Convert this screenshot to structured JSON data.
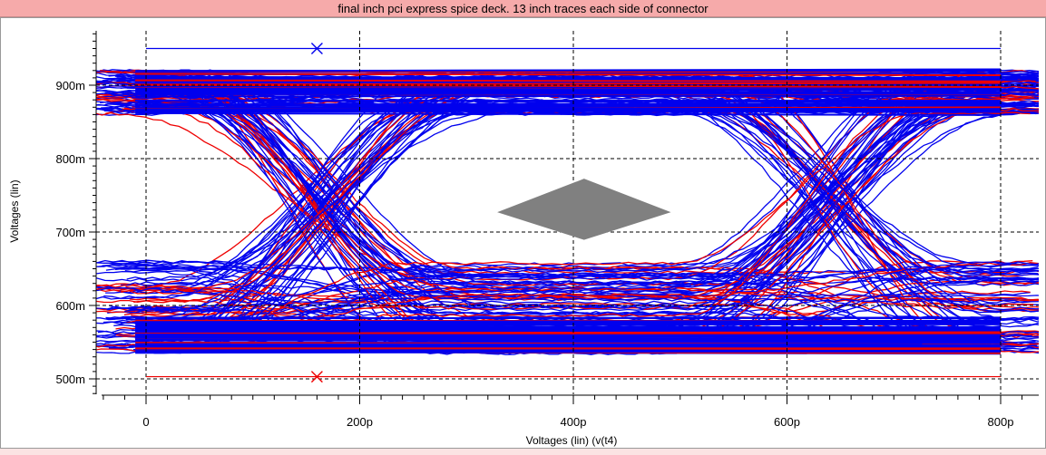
{
  "window": {
    "title": "final inch pci express spice deck. 13 inch traces each side of connector"
  },
  "chart_data": {
    "type": "line",
    "subtype": "eye-diagram",
    "title": "final inch pci express spice deck. 13 inch traces each side of connector",
    "xlabel": "Voltages (lin) (v(t4)",
    "ylabel": "Voltages (lin)",
    "xlim": [
      -40,
      850
    ],
    "ylim": [
      0.48,
      0.975
    ],
    "x_unit": "ps",
    "y_unit": "V",
    "x_ticks": [
      0,
      200,
      400,
      600,
      800
    ],
    "x_tick_labels": [
      "0",
      "200p",
      "400p",
      "600p",
      "800p"
    ],
    "y_ticks": [
      0.5,
      0.6,
      0.7,
      0.8,
      0.9
    ],
    "y_tick_labels": [
      "500m",
      "600m",
      "700m",
      "800m",
      "900m"
    ],
    "grid": true,
    "legend": "none",
    "colors": {
      "trace_a": "#0000ee",
      "trace_b": "#ee0000",
      "eye_mask": "#808080",
      "background": "#ffffff",
      "title_bar": "#f6aaaa"
    },
    "series": [
      {
        "role": "eye-traces",
        "description_levels": {
          "high_level_band": [
            0.86,
            0.92
          ],
          "low_level_band": [
            0.535,
            0.66
          ],
          "crossing_level": 0.725
        },
        "crossings_x": [
          160,
          640
        ],
        "bit_period": 480
      }
    ],
    "reference_lines": [
      {
        "name": "upper-limit",
        "y": 0.95,
        "color": "#0000ee"
      },
      {
        "name": "lower-limit",
        "y": 0.503,
        "color": "#ee0000"
      }
    ],
    "markers": [
      {
        "name": "upper-marker",
        "x": 160,
        "y": 0.95,
        "symbol": "x",
        "color": "#0000ee"
      },
      {
        "name": "lower-marker",
        "x": 160,
        "y": 0.503,
        "symbol": "x",
        "color": "#ee0000"
      }
    ],
    "eye_mask": {
      "vertices": [
        [
          330,
          0.727
        ],
        [
          410,
          0.772
        ],
        [
          490,
          0.727
        ],
        [
          410,
          0.69
        ]
      ],
      "color": "#808080"
    }
  }
}
